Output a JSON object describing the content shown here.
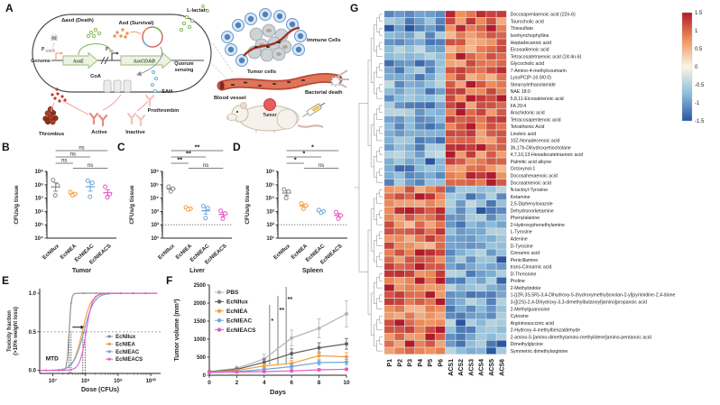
{
  "panels": {
    "a": "A",
    "b": "B",
    "c": "C",
    "d": "D",
    "e": "E",
    "f": "F",
    "g": "G"
  },
  "icons": {
    "skull": "☠"
  },
  "colors": {
    "ecnilux": "#8a8a8a",
    "ecniea": "#f59d3d",
    "ecnieac": "#6fa8dc",
    "ecnieacs": "#e659c6",
    "pbs": "#b3b3b3",
    "ecnilux_dark": "#5f5f5f",
    "heat_pos": "#b2182b",
    "heat_neg": "#2a56a1"
  },
  "panel_a": {
    "death_label": "Δasd (Death)",
    "survival_label": "Asd (Survival)",
    "l_lactate": "L-lactate",
    "genome": "Genome",
    "p1_base": "P",
    "p1_sub": "J23119",
    "p2_base": "P",
    "p2_sub": "lux",
    "gene1": "luxE",
    "gene2": "luxCDAB",
    "quorum1": "Quorum",
    "quorum2": "sensing",
    "coa": "CoA",
    "sah": "SAH",
    "thrombus": "Thrombus",
    "active": "Active",
    "inactive": "Inactive",
    "prothrombin": "Prothrombin",
    "blood_vessel": "Blood vessel",
    "immune_cells": "Immune Cells",
    "tumor_cells": "Tumor cells",
    "bacterial_death": "Bacterial death",
    "tumor": "Tumor"
  },
  "chart_data": [
    {
      "panel": "B",
      "type": "scatter",
      "title_x": "Tumor",
      "ylabel": "CFUs/g tissue",
      "categories": [
        "EcNIlux",
        "EcNIEA",
        "EcNIEAC",
        "EcNIEACS"
      ],
      "log_range": [
        4,
        9
      ],
      "ytick_labels": [
        "10⁴",
        "10⁵",
        "10⁶",
        "10⁷",
        "10⁸",
        "10⁹"
      ],
      "points_log10": [
        [
          8.35,
          7.95,
          7.2
        ],
        [
          7.45,
          7.3,
          7.2
        ],
        [
          8.3,
          8.15,
          7.1
        ],
        [
          7.85,
          7.3,
          7.05
        ]
      ],
      "baseline_log10": null,
      "sig": [
        {
          "a": 0,
          "b": 3,
          "label": "ns"
        },
        {
          "a": 0,
          "b": 2,
          "label": "ns"
        },
        {
          "a": 0,
          "b": 1,
          "label": "ns"
        },
        {
          "a": 1,
          "b": 3,
          "label": "ns"
        }
      ]
    },
    {
      "panel": "C",
      "type": "scatter",
      "title_x": "Liver",
      "ylabel": "CFUs/g tissue",
      "categories": [
        "EcNIlux",
        "EcNIEA",
        "EcNIEAC",
        "EcNIEACS"
      ],
      "log_range": [
        1,
        6
      ],
      "ytick_labels": [
        "10¹",
        "10²",
        "10³",
        "10⁴",
        "10⁵",
        "10⁶"
      ],
      "points_log10": [
        [
          4.85,
          4.7,
          4.5
        ],
        [
          3.3,
          3.2,
          3.15
        ],
        [
          3.4,
          3.25,
          2.5
        ],
        [
          3.05,
          2.85,
          2.45
        ]
      ],
      "baseline_log10": 2,
      "sig": [
        {
          "a": 0,
          "b": 3,
          "label": "**"
        },
        {
          "a": 0,
          "b": 2,
          "label": "**"
        },
        {
          "a": 0,
          "b": 1,
          "label": "**"
        },
        {
          "a": 1,
          "b": 3,
          "label": "ns"
        }
      ]
    },
    {
      "panel": "D",
      "type": "scatter",
      "title_x": "Spleen",
      "ylabel": "CFUs/g tissue",
      "categories": [
        "EcNIlux",
        "EcNIEA",
        "EcNIEAC",
        "EcNIEACS"
      ],
      "log_range": [
        1,
        6
      ],
      "ytick_labels": [
        "10¹",
        "10²",
        "10³",
        "10⁴",
        "10⁵",
        "10⁶"
      ],
      "points_log10": [
        [
          4.65,
          4.5,
          4.0
        ],
        [
          3.6,
          3.45,
          3.2
        ],
        [
          3.1,
          3.0,
          2.9
        ],
        [
          2.95,
          2.7,
          2.45
        ]
      ],
      "baseline_log10": 2,
      "sig": [
        {
          "a": 0,
          "b": 3,
          "label": "*"
        },
        {
          "a": 0,
          "b": 2,
          "label": "*"
        },
        {
          "a": 0,
          "b": 1,
          "label": "*"
        },
        {
          "a": 1,
          "b": 3,
          "label": "ns"
        }
      ]
    },
    {
      "panel": "E",
      "type": "line-sigmoid",
      "xlabel": "Dose (CFUs)",
      "ylabel_line1": "Toxicity fraction",
      "ylabel_line2": "(>10% weight loss)",
      "mtd_label": "MTD",
      "xticks_log10": [
        7,
        8,
        9,
        10
      ],
      "xtick_labels": [
        "10⁷",
        "10⁸",
        "10⁹",
        "10¹⁰"
      ],
      "ytick_labels": [
        "0.0",
        "0.5",
        "1.0"
      ],
      "yticks": [
        0,
        0.5,
        1
      ],
      "series": [
        {
          "name": "EcNIlux",
          "color_key": "ecnilux",
          "mid_log10": 7.5,
          "slope": 14
        },
        {
          "name": "EcNIEA",
          "color_key": "ecniea",
          "mid_log10": 7.9,
          "slope": 3.2
        },
        {
          "name": "EcNIEAC",
          "color_key": "ecnieac",
          "mid_log10": 7.95,
          "slope": 2.8
        },
        {
          "name": "EcNIEACS",
          "color_key": "ecnieacs",
          "mid_log10": 8.02,
          "slope": 4.5
        }
      ],
      "dotted_v_log10": [
        7.5,
        7.56,
        7.92,
        7.99
      ],
      "dotted_h": 0.5
    },
    {
      "panel": "F",
      "type": "line",
      "xlabel": "Days",
      "ylabel": "Tumor volume (mm³)",
      "x": [
        0,
        2,
        4,
        6,
        8,
        10
      ],
      "yticks": [
        0,
        500,
        1000,
        1500,
        2000,
        2500
      ],
      "series": [
        {
          "name": "PBS",
          "color_key": "pbs",
          "values": [
            100,
            190,
            450,
            1030,
            1300,
            1700
          ],
          "err": [
            30,
            60,
            130,
            220,
            260,
            360
          ]
        },
        {
          "name": "EcNIlux",
          "color_key": "ecnilux_dark",
          "values": [
            100,
            160,
            360,
            600,
            760,
            870
          ],
          "err": [
            25,
            40,
            90,
            130,
            140,
            150
          ]
        },
        {
          "name": "EcNIEA",
          "color_key": "ecniea",
          "values": [
            90,
            130,
            260,
            330,
            540,
            510
          ],
          "err": [
            20,
            30,
            60,
            80,
            110,
            120
          ]
        },
        {
          "name": "EcNIEAC",
          "color_key": "ecnieac",
          "values": [
            80,
            100,
            160,
            240,
            350,
            360
          ],
          "err": [
            15,
            25,
            45,
            60,
            70,
            80
          ]
        },
        {
          "name": "EcNIEACS",
          "color_key": "ecnieacs",
          "values": [
            80,
            90,
            100,
            120,
            150,
            165
          ],
          "err": [
            10,
            15,
            20,
            25,
            30,
            35
          ]
        }
      ],
      "sig": [
        {
          "x": 4.4,
          "label": "*"
        },
        {
          "x": 5.0,
          "label": "**"
        },
        {
          "x": 5.6,
          "label": "**"
        }
      ]
    },
    {
      "panel": "G",
      "type": "heatmap",
      "col_labels": [
        "P1",
        "P2",
        "P3",
        "P4",
        "P5",
        "P6",
        "ACS1",
        "ACS2",
        "ACS3",
        "ACS4",
        "ACS5",
        "ACS6"
      ],
      "colorbar_ticks": [
        "1.5",
        "1",
        "0.5",
        "0",
        "-0.5",
        "-1",
        "-1.5"
      ],
      "row_labels": [
        "Docosapentaenoic acid (22n-6)",
        "Taurocholic acid",
        "Thiosulfate",
        "Isorhynchophylline",
        "Heptadecanoic acid",
        "Eicosadienoic acid",
        "Tetracosatetraenoic acid (24:4n-6)",
        "Glycocholic acid",
        "7-Amino-4-methylcoumarin",
        "LysoPC(P-16:0/0:0)",
        "Stearoylethanolamide",
        "NAE 18:0",
        "5,8,11-Eicosatrienoic acid",
        "FA 20:4",
        "Arachidonic acid",
        "Tetracosapentenoic acid",
        "Tetrathionic Acid",
        "Linoleic acid",
        "10Z-Nonadecenoic acid",
        "3b,17b-Dihydroxyetiocholane",
        "4,7,10,13-Hexadecatetraenoic acid",
        "Palmitic acid alkyne",
        "Octoxynol-1",
        "Docosahexaenoic acid",
        "Docosatrienoic acid",
        "N-lactoyl-Tyrosine",
        "Ketamine",
        "2,5-Diphenyloxazole",
        "Dehydronorketamine",
        "Phenylalanine",
        "2-Hydroxyphenethylamine",
        "L-Tyrosine",
        "Adenine",
        "D-Tyrosine",
        "Cinnamic acid",
        "Penicillamine",
        "trans-Cinnamic acid",
        "D-Threonine",
        "Proline",
        "2-Methylindole",
        "1-[(2R,3S,5R)-3,4-Dihydroxy-5-(hydroxymethyl)oxolan-2-yl]pyrimidine-2,4-dione",
        "3-[[(2S)-2,4-Dihydroxy-3,3-dimethylbutanoyl]amino]propanoic acid",
        "2-Methylguanosine",
        "Cytosine",
        "Argininosuccinic acid",
        "2-Hydroxy-4-methylbenzaldehyde",
        "2-amino-5-[amino-dimethylamino-methylidene]amino-pentanoic acid",
        "Dimethylglycine",
        "Symmetric dimethylarginine"
      ],
      "group_means": [
        [
          -0.75,
          1.05
        ],
        [
          -0.9,
          0.95
        ],
        [
          -1.0,
          1.1
        ],
        [
          -0.8,
          0.85
        ],
        [
          -0.95,
          0.9
        ],
        [
          -0.7,
          0.8
        ],
        [
          -0.85,
          0.95
        ],
        [
          -1.05,
          0.9
        ],
        [
          -0.8,
          1.0
        ],
        [
          -0.9,
          0.85
        ],
        [
          -0.75,
          0.9
        ],
        [
          -1.0,
          0.95
        ],
        [
          -0.85,
          1.05
        ],
        [
          -0.95,
          0.9
        ],
        [
          -0.7,
          0.85
        ],
        [
          -0.9,
          1.0
        ],
        [
          -1.1,
          0.95
        ],
        [
          -0.8,
          0.9
        ],
        [
          -0.95,
          0.85
        ],
        [
          -0.85,
          1.0
        ],
        [
          -0.7,
          0.9
        ],
        [
          -0.9,
          0.95
        ],
        [
          -1.0,
          0.85
        ],
        [
          -0.8,
          1.1
        ],
        [
          -0.9,
          0.9
        ],
        [
          0.85,
          -0.8
        ],
        [
          0.95,
          -0.9
        ],
        [
          0.9,
          -0.75
        ],
        [
          1.05,
          -0.95
        ],
        [
          0.9,
          -0.85
        ],
        [
          0.8,
          -0.9
        ],
        [
          1.0,
          -0.8
        ],
        [
          0.9,
          -1.0
        ],
        [
          0.85,
          -0.9
        ],
        [
          1.1,
          -0.85
        ],
        [
          0.95,
          -0.75
        ],
        [
          0.9,
          -0.95
        ],
        [
          1.0,
          -0.85
        ],
        [
          0.85,
          -0.9
        ],
        [
          0.9,
          -0.8
        ],
        [
          1.05,
          -0.9
        ],
        [
          0.95,
          -0.85
        ],
        [
          0.8,
          -1.0
        ],
        [
          0.9,
          -0.9
        ],
        [
          1.0,
          -0.8
        ],
        [
          0.9,
          -0.95
        ],
        [
          0.85,
          -0.85
        ],
        [
          0.95,
          -0.9
        ],
        [
          0.9,
          -0.8
        ]
      ]
    }
  ]
}
